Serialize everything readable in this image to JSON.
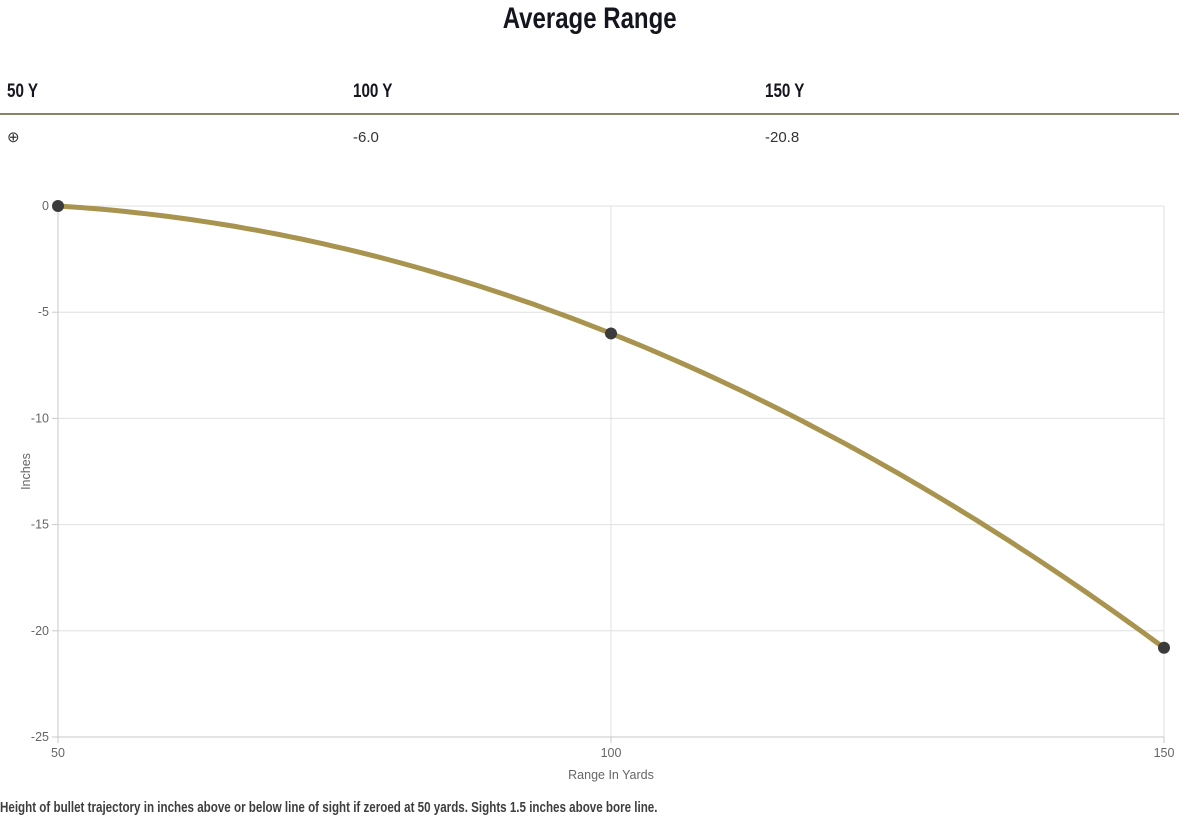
{
  "title": "Average Range",
  "range_table": {
    "columns": [
      "50 Y",
      "100 Y",
      "150 Y"
    ],
    "values": [
      "⊕",
      "-6.0",
      "-20.8"
    ]
  },
  "footer_note": "Height of bullet trajectory in inches above or below line of sight if zeroed at 50 yards. Sights 1.5 inches above bore line.",
  "colors": {
    "title_text": "#15151f",
    "separator": "#8b8269",
    "value_text": "#333333",
    "footer_text": "#3e3e3e"
  },
  "chart_data": {
    "type": "line",
    "title": "Average Range",
    "x": [
      50,
      100,
      150
    ],
    "values": [
      0,
      -6.0,
      -20.8
    ],
    "xlabel": "Range In Yards",
    "ylabel": "Inches",
    "xlim": [
      50,
      150
    ],
    "ylim": [
      -25,
      0
    ],
    "x_ticks": [
      50,
      100,
      150
    ],
    "y_ticks": [
      0,
      -5,
      -10,
      -15,
      -20,
      -25
    ],
    "grid": true,
    "legend": "none",
    "line_color": "#a8944f",
    "marker_color": "#3b3b3b",
    "grid_color": "#e0e0e0",
    "axis_color": "#c9c9c9",
    "tick_label_color": "#666666"
  }
}
